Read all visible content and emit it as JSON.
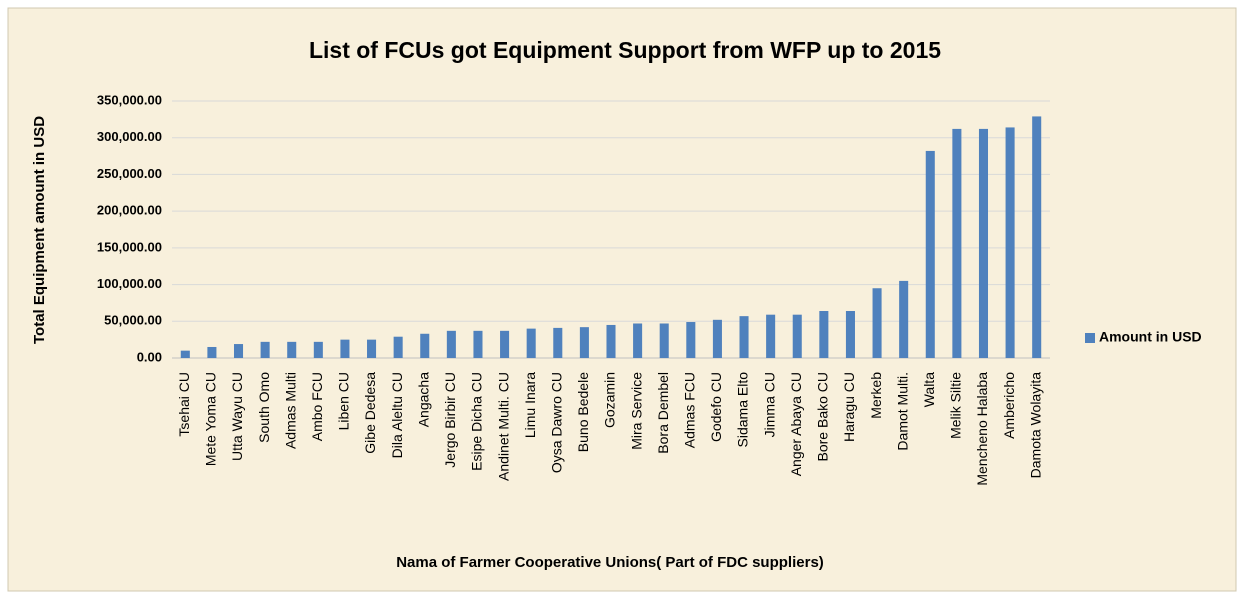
{
  "chart_data": {
    "type": "bar",
    "title": "List of FCUs got Equipment Support from WFP up to 2015",
    "x_label": "Nama of Farmer Cooperative Unions( Part of FDC suppliers)",
    "y_label": "Total  Equipment amount in USD",
    "categories": [
      "Tsehai CU",
      "Mete Yoma CU",
      "Utta Wayu CU",
      "South Omo",
      "Admas Multi",
      "Ambo FCU",
      "Liben CU",
      "Gibe Dedesa",
      "Dila Aleltu CU",
      "Angacha",
      "Jergo Birbir CU",
      "Esipe Dicha CU",
      "Andinet Multi. CU",
      "Limu Inara",
      "Oysa Dawro CU",
      "Buno Bedele",
      "Gozamin",
      "Mira Service",
      "Bora Dembel",
      "Admas FCU",
      "Godefo CU",
      "Sidama Elto",
      "Jimma CU",
      "Anger Abaya CU",
      "Bore Bako CU",
      "Haragu CU",
      "Merkeb",
      "Damot Multi.",
      "Walta",
      "Melik Siltie",
      "Mencheno Halaba",
      "Ambericho",
      "Damota Wolayita"
    ],
    "series": [
      {
        "name": "Amount  in USD",
        "color": "#4f81bd",
        "values": [
          10000,
          15000,
          19000,
          22000,
          22000,
          22000,
          25000,
          25000,
          29000,
          33000,
          37000,
          37000,
          37000,
          40000,
          41000,
          42000,
          45000,
          47000,
          47000,
          49000,
          52000,
          57000,
          59000,
          59000,
          64000,
          64000,
          95000,
          105000,
          282000,
          312000,
          312000,
          314000,
          329000
        ]
      }
    ],
    "ylim": [
      0,
      350000
    ],
    "yticks": [
      {
        "value": 0,
        "label": "0.00"
      },
      {
        "value": 50000,
        "label": "50,000.00"
      },
      {
        "value": 100000,
        "label": "100,000.00"
      },
      {
        "value": 150000,
        "label": "150,000.00"
      },
      {
        "value": 200000,
        "label": "200,000.00"
      },
      {
        "value": 250000,
        "label": "250,000.00"
      },
      {
        "value": 300000,
        "label": "300,000.00"
      },
      {
        "value": 350000,
        "label": "350,000.00"
      }
    ],
    "grid": true,
    "legend": "right"
  }
}
